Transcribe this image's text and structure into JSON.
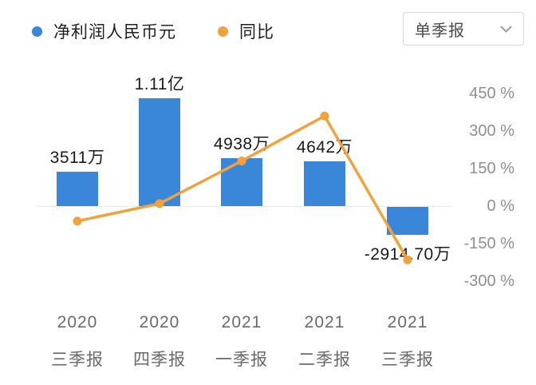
{
  "legend": {
    "items": [
      {
        "label": "净利润人民币元",
        "color": "#3a86d8"
      },
      {
        "label": "同比",
        "color": "#f0a23c"
      }
    ]
  },
  "dropdown": {
    "label": "单季报"
  },
  "chart_data": {
    "type": "bar",
    "title": "",
    "categories": [
      "2020 三季报",
      "2020 四季报",
      "2021 一季报",
      "2021 二季报",
      "2021 三季报"
    ],
    "category_lines": [
      [
        "2020",
        "三季报"
      ],
      [
        "2020",
        "四季报"
      ],
      [
        "2021",
        "一季报"
      ],
      [
        "2021",
        "二季报"
      ],
      [
        "2021",
        "三季报"
      ]
    ],
    "series": [
      {
        "name": "净利润人民币元",
        "type": "bar",
        "unit": "万元",
        "values": [
          3511,
          11100,
          4938,
          4642,
          -2914.7
        ],
        "labels": [
          "3511万",
          "1.11亿",
          "4938万",
          "4642万",
          "-2914.70万"
        ],
        "color": "#3a86d8"
      },
      {
        "name": "同比",
        "type": "line",
        "unit": "%",
        "values": [
          -60,
          10,
          180,
          360,
          -215
        ],
        "color": "#f0a23c"
      }
    ],
    "y2_axis": {
      "position": "right",
      "tick_labels": [
        "450 %",
        "300 %",
        "150 %",
        "0 %",
        "-150 %",
        "-300 %"
      ],
      "tick_values": [
        450,
        300,
        150,
        0,
        -150,
        -300
      ]
    },
    "legend_position": "top-left",
    "grid": false
  }
}
